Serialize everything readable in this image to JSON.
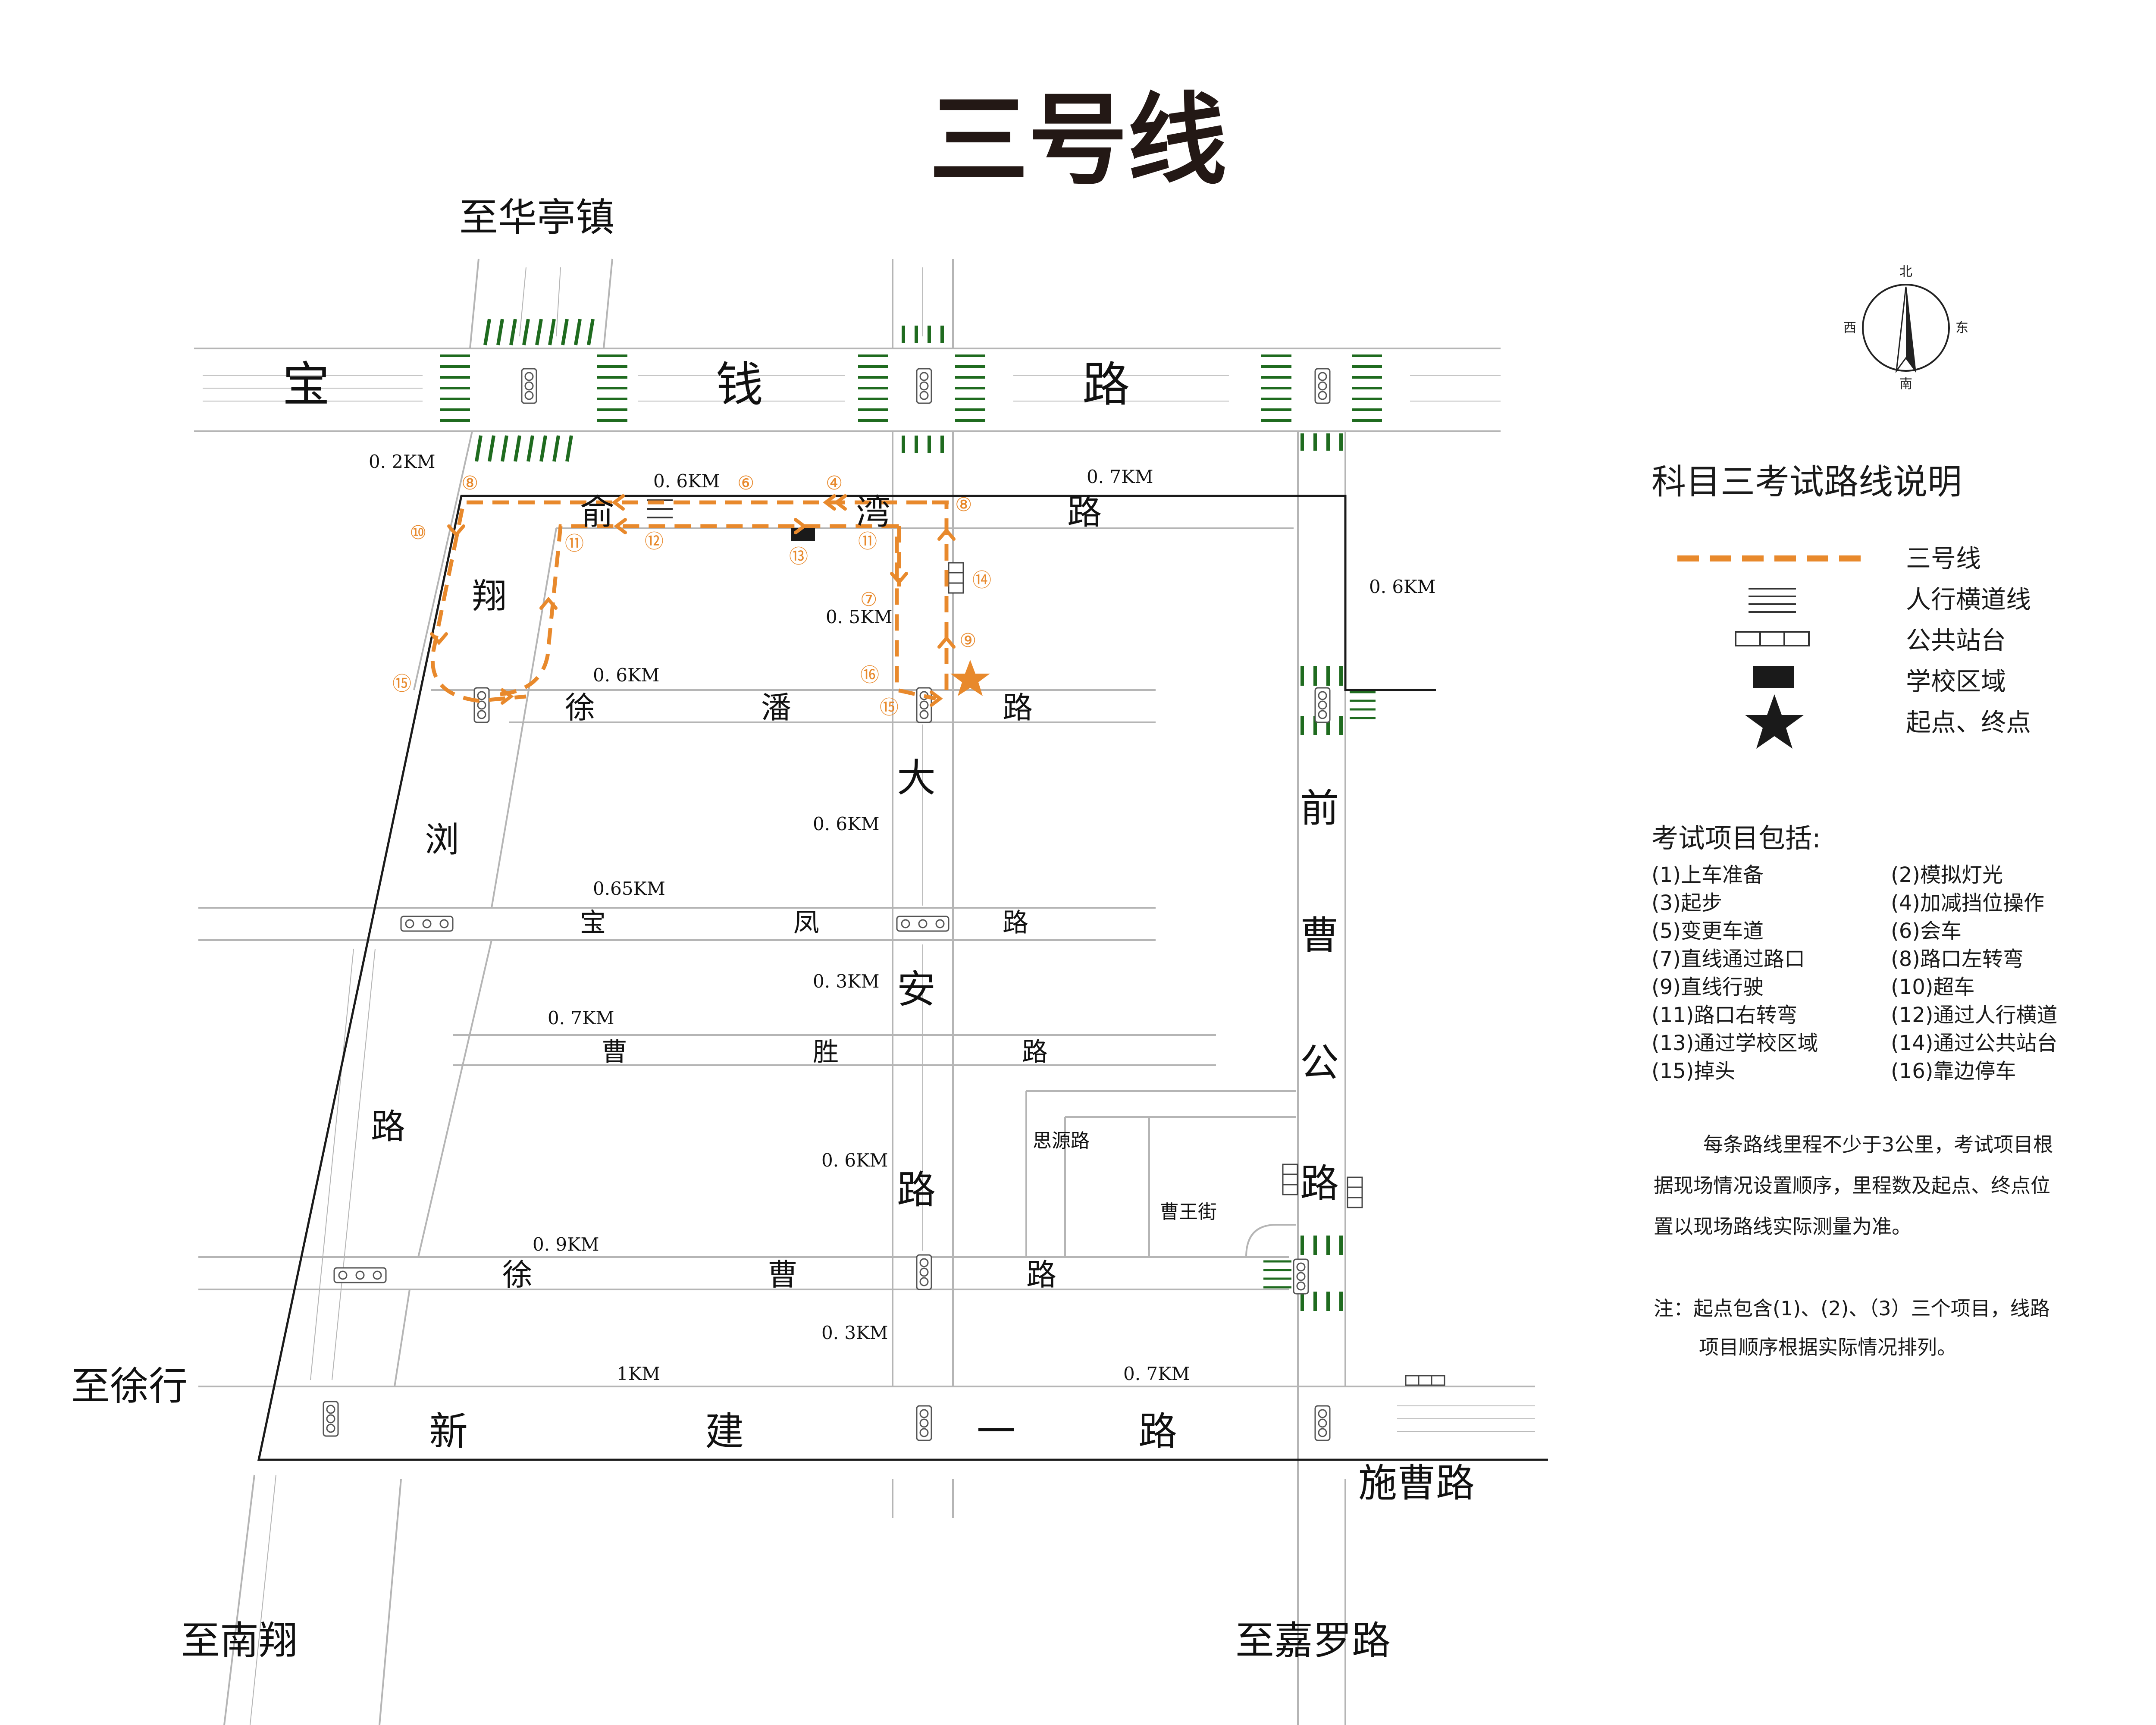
{
  "title": "三号线",
  "destinations": {
    "north": "至华亭镇",
    "west": "至徐行",
    "south_west": "至南翔",
    "south_east": "至嘉罗路",
    "east": "施曹路"
  },
  "roads": {
    "baoqian": [
      "宝",
      "钱",
      "路"
    ],
    "yuwan": [
      "俞",
      "湾",
      "路"
    ],
    "xupan": [
      "徐",
      "潘",
      "路"
    ],
    "baofeng": [
      "宝",
      "凤",
      "路"
    ],
    "caosheng": [
      "曹",
      "胜",
      "路"
    ],
    "xucao": [
      "徐",
      "曹",
      "路"
    ],
    "xinjian": [
      "新",
      "建",
      "一",
      "路"
    ],
    "xiangliu": [
      "翔",
      "浏",
      "路"
    ],
    "daan": [
      "大",
      "安",
      "路"
    ],
    "qiancao": [
      "前",
      "曹",
      "公",
      "路"
    ],
    "siyuan": "思源路",
    "caowang": "曹王街"
  },
  "distances": {
    "d1": "0. 2KM",
    "d2": "0. 6KM",
    "d3": "0. 7KM",
    "d4": "0. 6KM",
    "d5": "0. 5KM",
    "d6": "0. 6KM",
    "d7": "0. 6KM",
    "d8": "0.65KM",
    "d9": "0. 3KM",
    "d10": "0. 7KM",
    "d11": "0. 6KM",
    "d12": "0. 9KM",
    "d13": "0. 3KM",
    "d14": "1KM",
    "d15": "0. 7KM"
  },
  "route_markers": {
    "m8a": "⑧",
    "m10": "⑩",
    "m11a": "⑪",
    "m12": "⑫",
    "m13": "⑬",
    "m6": "⑥",
    "m4": "④",
    "m8b": "⑧",
    "m11b": "⑪",
    "m7": "⑦",
    "m14": "⑭",
    "m9": "⑨",
    "m16": "⑯",
    "m15a": "⑮",
    "m15b": "⑮"
  },
  "compass": {
    "n": "北",
    "s": "南",
    "e": "东",
    "w": "西"
  },
  "legend": {
    "title": "科目三考试路线说明",
    "items": [
      "三号线",
      "人行横道线",
      "公共站台",
      "学校区域",
      "起点、终点"
    ]
  },
  "items_title": "考试项目包括:",
  "items": [
    "(1)上车准备",
    "(2)模拟灯光",
    "(3)起步",
    "(4)加减挡位操作",
    "(5)变更车道",
    "(6)会车",
    "(7)直线通过路口",
    "(8)路口左转弯",
    "(9)直线行驶",
    "(10)超车",
    "(11)路口右转弯",
    "(12)通过人行横道",
    "(13)通过学校区域",
    "(14)通过公共站台",
    "(15)掉头",
    "(16)靠边停车"
  ],
  "notes": {
    "p1_l1": "每条路线里程不少于3公里，考试项目根",
    "p1_l2": "据现场情况设置顺序，里程数及起点、终点位",
    "p1_l3": "置以现场路线实际测量为准。",
    "p2_l1": "注：起点包含(1)、(2)、（3）三个项目，线路",
    "p2_l2": "项目顺序根据实际情况排列。"
  },
  "colors": {
    "route": "#e8892c",
    "crosswalk": "#1f6b1f",
    "road_line": "#b5b5b5",
    "boundary": "#1a1a1a"
  }
}
